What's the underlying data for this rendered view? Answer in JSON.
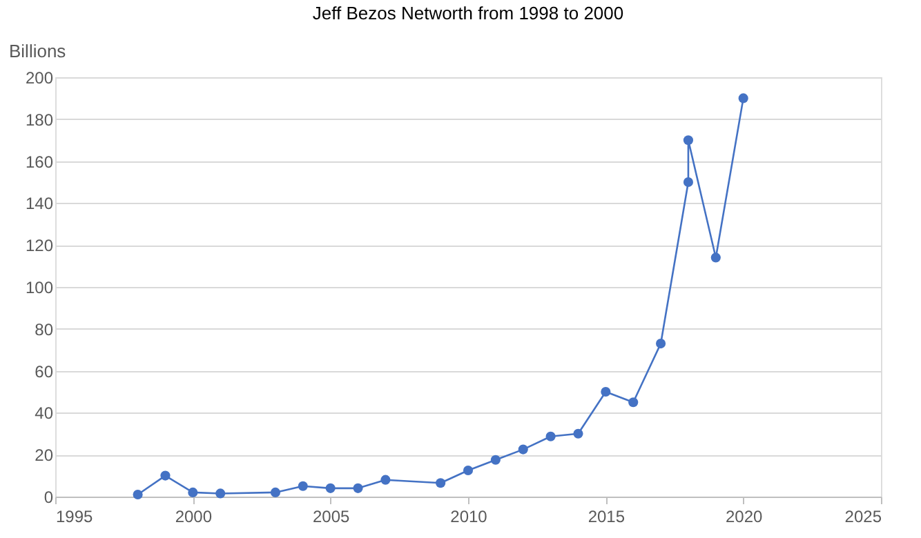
{
  "chart_data": {
    "type": "line",
    "title": "Jeff Bezos Networth from 1998 to 2000",
    "ylabel": "Billions",
    "x": [
      1998,
      1999,
      2000,
      2001,
      2003,
      2004,
      2005,
      2006,
      2007,
      2009,
      2010,
      2011,
      2012,
      2013,
      2014,
      2015,
      2016,
      2017,
      2018,
      2018,
      2019,
      2020
    ],
    "series": [
      {
        "color": "#4472c4",
        "values": [
          1,
          10,
          2,
          1.5,
          2,
          5,
          4,
          4,
          8,
          6.5,
          12.5,
          17.5,
          22.5,
          28.7,
          30,
          50,
          45,
          73,
          150,
          170,
          114,
          190
        ]
      }
    ],
    "xlim": [
      1995,
      2025
    ],
    "xticks": [
      1995,
      2000,
      2005,
      2010,
      2015,
      2020,
      2025
    ],
    "ylim": [
      0,
      200
    ],
    "yticks": [
      0,
      20,
      40,
      60,
      80,
      100,
      120,
      140,
      160,
      180,
      200
    ],
    "grid": "y",
    "marker": "circle",
    "line_style": "solid"
  }
}
